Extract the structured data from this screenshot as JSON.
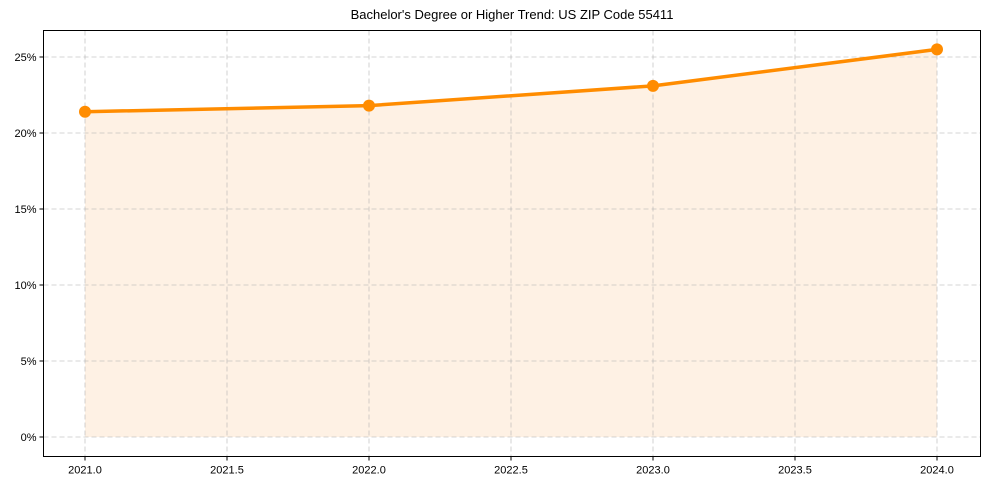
{
  "chart_data": {
    "type": "line",
    "title": "Bachelor's Degree or Higher Trend: US ZIP Code 55411",
    "xlabel": "",
    "ylabel": "",
    "x": [
      2021,
      2022,
      2023,
      2024
    ],
    "series": [
      {
        "name": "Bachelor's Degree or Higher",
        "values": [
          21.4,
          21.8,
          23.1,
          25.5
        ],
        "color": "#ff8c00",
        "fill": "#fef1e4"
      }
    ],
    "xticks": [
      "2021.0",
      "2021.5",
      "2022.0",
      "2022.5",
      "2023.0",
      "2023.5",
      "2024.0"
    ],
    "xtick_values": [
      2021.0,
      2021.5,
      2022.0,
      2022.5,
      2023.0,
      2023.5,
      2024.0
    ],
    "yticks": [
      "0%",
      "5%",
      "10%",
      "15%",
      "20%",
      "25%"
    ],
    "ytick_values": [
      0,
      5,
      10,
      15,
      20,
      25
    ],
    "xlim": [
      2020.85,
      2024.15
    ],
    "ylim": [
      -1.27,
      26.8
    ],
    "grid": true,
    "legend": null
  }
}
